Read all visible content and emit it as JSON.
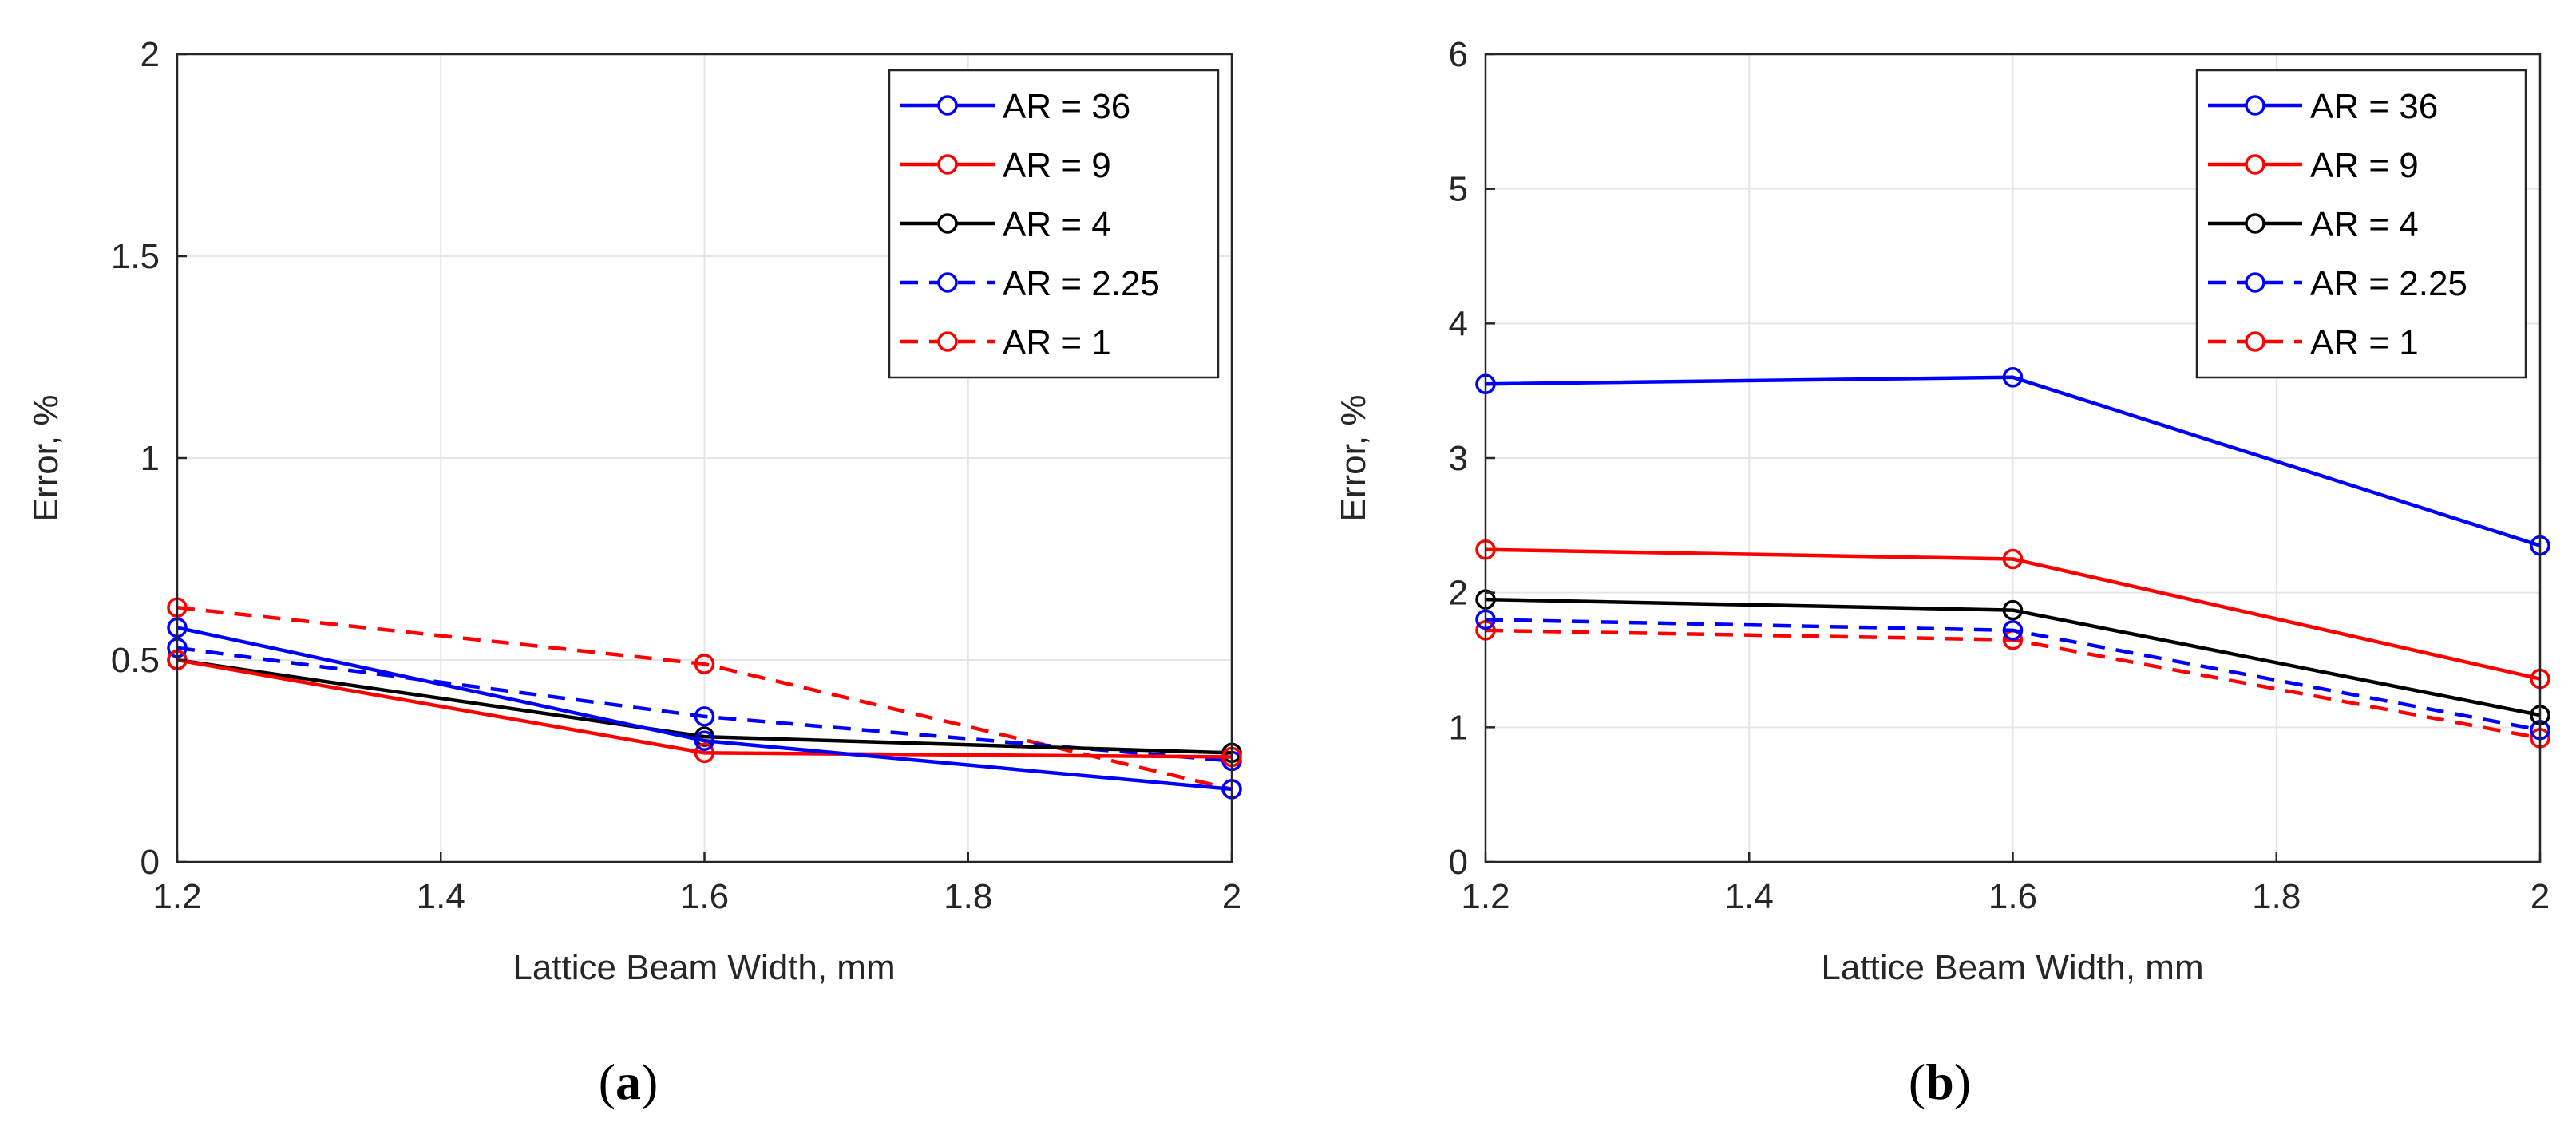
{
  "chart_data": [
    {
      "type": "line",
      "panel_label": "a",
      "xlabel": "Lattice Beam Width, mm",
      "ylabel": "Error, %",
      "xlim": [
        1.2,
        2
      ],
      "ylim": [
        0,
        2
      ],
      "xticks": [
        1.2,
        1.4,
        1.6,
        1.8,
        2
      ],
      "yticks": [
        0,
        0.5,
        1,
        1.5,
        2
      ],
      "xtick_labels": [
        "1.2",
        "1.4",
        "1.6",
        "1.8",
        "2"
      ],
      "ytick_labels": [
        "0",
        "0.5",
        "1",
        "1.5",
        "2"
      ],
      "grid": true,
      "legend_position": "top-right",
      "x": [
        1.2,
        1.6,
        2
      ],
      "series": [
        {
          "name": "AR = 36",
          "color": "#0000ff",
          "dash": "solid",
          "values": [
            0.58,
            0.3,
            0.18
          ]
        },
        {
          "name": "AR = 9",
          "color": "#ff0000",
          "dash": "solid",
          "values": [
            0.5,
            0.27,
            0.26
          ]
        },
        {
          "name": "AR = 4",
          "color": "#000000",
          "dash": "solid",
          "values": [
            0.5,
            0.31,
            0.27
          ]
        },
        {
          "name": "AR = 2.25",
          "color": "#0000ff",
          "dash": "dashed",
          "values": [
            0.53,
            0.36,
            0.25
          ]
        },
        {
          "name": "AR = 1",
          "color": "#ff0000",
          "dash": "dashed",
          "values": [
            0.63,
            0.49,
            0.18
          ]
        }
      ]
    },
    {
      "type": "line",
      "panel_label": "b",
      "xlabel": "Lattice Beam Width, mm",
      "ylabel": "Error, %",
      "xlim": [
        1.2,
        2
      ],
      "ylim": [
        0,
        6
      ],
      "xticks": [
        1.2,
        1.4,
        1.6,
        1.8,
        2
      ],
      "yticks": [
        0,
        1,
        2,
        3,
        4,
        5,
        6
      ],
      "xtick_labels": [
        "1.2",
        "1.4",
        "1.6",
        "1.8",
        "2"
      ],
      "ytick_labels": [
        "0",
        "1",
        "2",
        "3",
        "4",
        "5",
        "6"
      ],
      "grid": true,
      "legend_position": "top-right",
      "x": [
        1.2,
        1.6,
        2
      ],
      "series": [
        {
          "name": "AR = 36",
          "color": "#0000ff",
          "dash": "solid",
          "values": [
            3.55,
            3.6,
            2.35
          ]
        },
        {
          "name": "AR = 9",
          "color": "#ff0000",
          "dash": "solid",
          "values": [
            2.32,
            2.25,
            1.36
          ]
        },
        {
          "name": "AR = 4",
          "color": "#000000",
          "dash": "solid",
          "values": [
            1.95,
            1.87,
            1.09
          ]
        },
        {
          "name": "AR = 2.25",
          "color": "#0000ff",
          "dash": "dashed",
          "values": [
            1.8,
            1.72,
            0.98
          ]
        },
        {
          "name": "AR = 1",
          "color": "#ff0000",
          "dash": "dashed",
          "values": [
            1.72,
            1.65,
            0.92
          ]
        }
      ]
    }
  ]
}
